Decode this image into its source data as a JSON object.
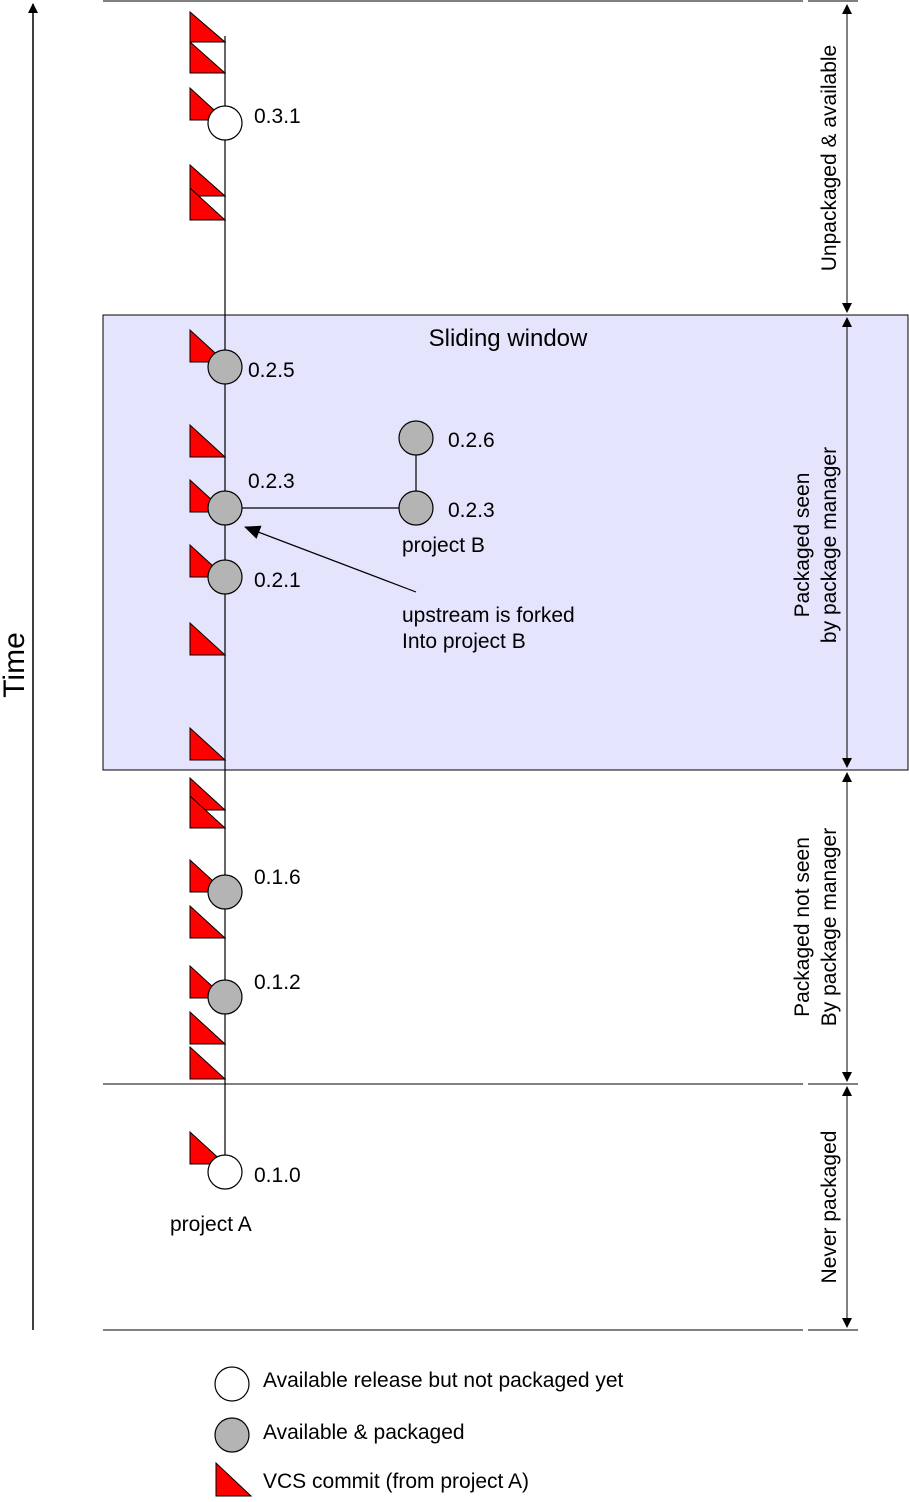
{
  "axis": {
    "label": "Time"
  },
  "window": {
    "title": "Sliding window",
    "fill": "#e4e4fc"
  },
  "zones": [
    {
      "label": "Unpackaged & available"
    },
    {
      "label": "Packaged seen",
      "label2": "by package manager"
    },
    {
      "label": "Packaged not seen",
      "label2": "By package manager"
    },
    {
      "label": "Never packaged"
    }
  ],
  "projectA": {
    "name": "project A",
    "releases": [
      {
        "version": "0.3.1",
        "status": "available"
      },
      {
        "version": "0.2.5",
        "status": "packaged"
      },
      {
        "version": "0.2.3",
        "status": "packaged"
      },
      {
        "version": "0.2.1",
        "status": "packaged"
      },
      {
        "version": "0.1.6",
        "status": "packaged"
      },
      {
        "version": "0.1.2",
        "status": "packaged"
      },
      {
        "version": "0.1.0",
        "status": "available"
      }
    ]
  },
  "projectB": {
    "name": "project B",
    "releases": [
      {
        "version": "0.2.6",
        "status": "packaged"
      },
      {
        "version": "0.2.3",
        "status": "packaged"
      }
    ]
  },
  "fork_annotation": {
    "line1": "upstream is forked",
    "line2": "Into project B"
  },
  "legend": [
    {
      "icon": "white-circle-icon",
      "label": "Available release but not packaged yet"
    },
    {
      "icon": "gray-circle-icon",
      "label": "Available & packaged"
    },
    {
      "icon": "red-triangle-icon",
      "label": "VCS commit (from project A)"
    }
  ],
  "colors": {
    "commit": "#ff0000",
    "packaged": "#b4b4b4",
    "available": "#ffffff"
  }
}
